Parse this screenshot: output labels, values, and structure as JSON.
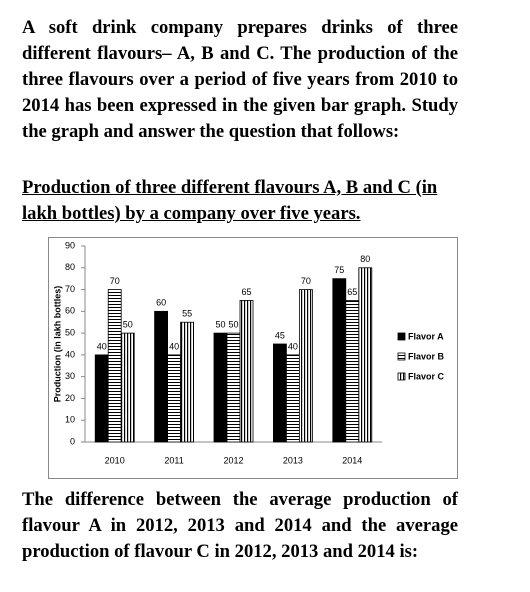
{
  "intro": "A soft drink company prepares drinks of three different flavours– A, B and C. The production of the three flavours over a period of five years from 2010 to 2014 has been expressed in the given bar graph. Study the graph and answer the question that follows:",
  "chart_title": "Production of three different flavours A, B and C (in lakh bottles) by a company over five years.",
  "chart_data": {
    "type": "bar",
    "ylabel": "Production (in lakh bottles)",
    "categories": [
      "2010",
      "2011",
      "2012",
      "2013",
      "2014"
    ],
    "series": [
      {
        "name": "Flavor A",
        "color": "#000000",
        "pattern": "solid",
        "values": [
          40,
          60,
          50,
          45,
          75
        ]
      },
      {
        "name": "Flavor B",
        "color": "#ffffff",
        "pattern": "horizontal",
        "values": [
          70,
          40,
          50,
          40,
          65
        ]
      },
      {
        "name": "Flavor C",
        "color": "#ffffff",
        "pattern": "vertical",
        "values": [
          50,
          55,
          65,
          70,
          80
        ]
      }
    ],
    "ylim": [
      0,
      90
    ],
    "yticks": [
      0,
      10,
      20,
      30,
      40,
      50,
      60,
      70,
      80,
      90
    ],
    "grid": false,
    "legend": "right"
  },
  "question": "The difference between the average production of flavour A in 2012, 2013 and 2014 and the average production of flavour C in 2012, 2013 and 2014 is:"
}
